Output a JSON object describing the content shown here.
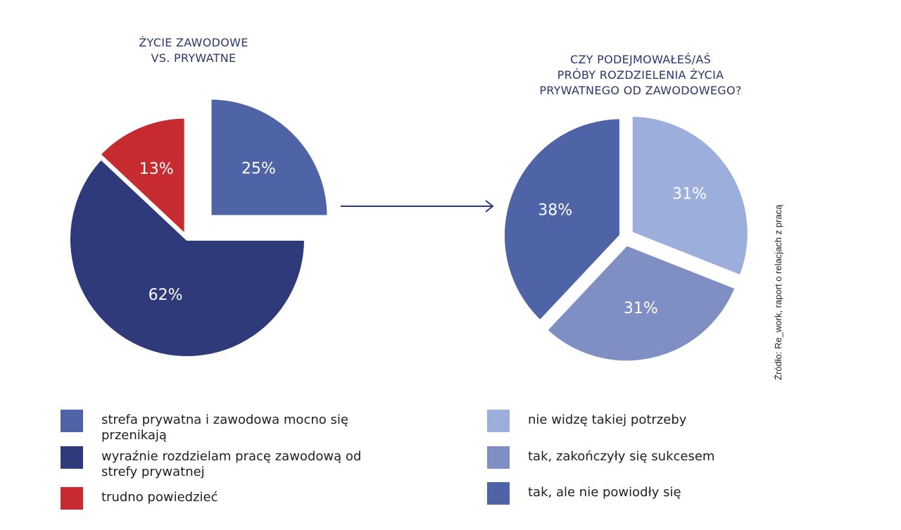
{
  "chart_data": [
    {
      "type": "pie",
      "title": "ŻYCIE ZAWODOWE VS. PRYWATNE",
      "title_lines": [
        "ŻYCIE ZAWODOWE",
        "VS. PRYWATNE"
      ],
      "slices": [
        {
          "label": "strefa prywatna i zawodowa mocno się przenikają",
          "value": 25,
          "display": "25%",
          "color": "#4f63a7",
          "exploded": true
        },
        {
          "label": "wyraźnie rozdzielam pracę zawodową od strefy prywatnej",
          "value": 62,
          "display": "62%",
          "color": "#2f3a7a"
        },
        {
          "label": "trudno powiedzieć",
          "value": 13,
          "display": "13%",
          "color": "#c62c2f"
        }
      ]
    },
    {
      "type": "pie",
      "title": "CZY PODEJMOWAŁEŚ/AŚ PRÓBY ROZDZIELENIA ŻYCIA PRYWATNEGO OD ZAWODOWEGO?",
      "title_lines": [
        "CZY PODEJMOWAŁEŚ/AŚ",
        "PRÓBY ROZDZIELENIA ŻYCIA",
        "PRYWATNEGO OD ZAWODOWEGO?"
      ],
      "slices": [
        {
          "label": "nie widzę takiej potrzeby",
          "value": 31,
          "display": "31%",
          "color": "#9caedb"
        },
        {
          "label": "tak, zakończyły się sukcesem",
          "value": 31,
          "display": "31%",
          "color": "#7f8fc3"
        },
        {
          "label": "tak, ale nie powiodły się",
          "value": 38,
          "display": "38%",
          "color": "#4f63a7"
        }
      ]
    }
  ],
  "source": "Źródło: Re_work, raport o relacjach z pracą"
}
